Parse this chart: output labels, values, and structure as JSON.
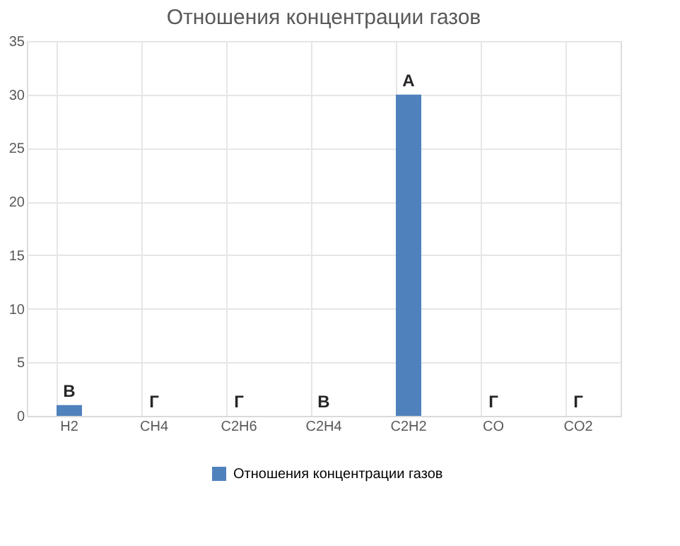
{
  "chart_data": {
    "type": "bar",
    "title": "Отношения концентрации газов",
    "categories": [
      "H2",
      "CH4",
      "C2H6",
      "C2H4",
      "C2H2",
      "CO",
      "CO2"
    ],
    "series": [
      {
        "name": "Отношения концентрации газов",
        "color": "#4f81bd",
        "values": [
          1,
          0,
          0,
          0,
          30,
          0,
          0
        ]
      }
    ],
    "ylim": [
      0,
      35
    ],
    "yticks": [
      0,
      5,
      10,
      15,
      20,
      25,
      30,
      35
    ],
    "grid": true,
    "legend": "bottom",
    "annotations": [
      {
        "text": "В",
        "x": "H2",
        "y": 1
      },
      {
        "text": "Г",
        "x": "CH4",
        "y": 0
      },
      {
        "text": "Г",
        "x": "C2H6",
        "y": 0
      },
      {
        "text": "В",
        "x": "C2H4",
        "y": 0
      },
      {
        "text": "А",
        "x": "C2H2",
        "y": 30
      },
      {
        "text": "Г",
        "x": "CO",
        "y": 0
      },
      {
        "text": "Г",
        "x": "CO2",
        "y": 0
      }
    ]
  }
}
